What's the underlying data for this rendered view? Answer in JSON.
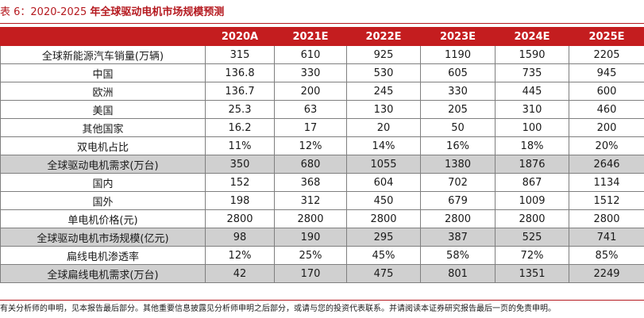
{
  "caption": {
    "prefix": "表 6：",
    "years": "2020-2025",
    "title": "年全球驱动电机市场规模预测"
  },
  "table": {
    "columns": [
      "",
      "2020A",
      "2021E",
      "2022E",
      "2023E",
      "2024E",
      "2025E"
    ],
    "rows": [
      {
        "label": "全球新能源汽车销量(万辆)",
        "values": [
          "315",
          "610",
          "925",
          "1190",
          "1590",
          "2205"
        ],
        "shaded": false
      },
      {
        "label": "中国",
        "values": [
          "136.8",
          "330",
          "530",
          "605",
          "735",
          "945"
        ],
        "shaded": false
      },
      {
        "label": "欧洲",
        "values": [
          "136.7",
          "200",
          "245",
          "330",
          "445",
          "600"
        ],
        "shaded": false
      },
      {
        "label": "美国",
        "values": [
          "25.3",
          "63",
          "130",
          "205",
          "310",
          "460"
        ],
        "shaded": false
      },
      {
        "label": "其他国家",
        "values": [
          "16.2",
          "17",
          "20",
          "50",
          "100",
          "200"
        ],
        "shaded": false
      },
      {
        "label": "双电机占比",
        "values": [
          "11%",
          "12%",
          "14%",
          "16%",
          "18%",
          "20%"
        ],
        "shaded": false
      },
      {
        "label": "全球驱动电机需求(万台)",
        "values": [
          "350",
          "680",
          "1055",
          "1380",
          "1876",
          "2646"
        ],
        "shaded": true
      },
      {
        "label": "国内",
        "values": [
          "152",
          "368",
          "604",
          "702",
          "867",
          "1134"
        ],
        "shaded": false
      },
      {
        "label": "国外",
        "values": [
          "198",
          "312",
          "450",
          "679",
          "1009",
          "1512"
        ],
        "shaded": false
      },
      {
        "label": "单电机价格(元)",
        "values": [
          "2800",
          "2800",
          "2800",
          "2800",
          "2800",
          "2800"
        ],
        "shaded": false
      },
      {
        "label": "全球驱动电机市场规模(亿元)",
        "values": [
          "98",
          "190",
          "295",
          "387",
          "525",
          "741"
        ],
        "shaded": true
      },
      {
        "label": "扁线电机渗透率",
        "values": [
          "12%",
          "25%",
          "45%",
          "58%",
          "72%",
          "85%"
        ],
        "shaded": false
      },
      {
        "label": "全球扁线电机需求(万台)",
        "values": [
          "42",
          "170",
          "475",
          "801",
          "1351",
          "2249"
        ],
        "shaded": true
      }
    ]
  },
  "footer": {
    "disclaimer": "有关分析师的申明，见本报告最后部分。其他重要信息披露见分析师申明之后部分，或请与您的投资代表联系。并请阅读本证券研究报告最后一页的免责申明。"
  }
}
